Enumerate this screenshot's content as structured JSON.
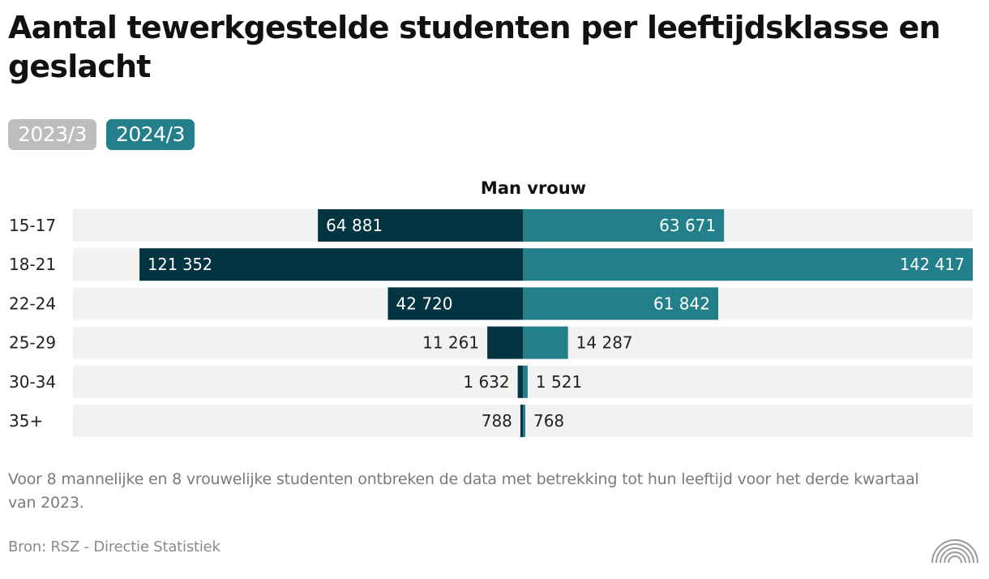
{
  "title": "Aantal tewerkgestelde studenten per leeftijdsklasse en geslacht",
  "tabs": [
    {
      "label": "2023/3",
      "active": false
    },
    {
      "label": "2024/3",
      "active": true
    }
  ],
  "chart_data": {
    "type": "bar",
    "orientation": "horizontal-diverging",
    "title": "Man vrouw",
    "categories": [
      "15-17",
      "18-21",
      "22-24",
      "25-29",
      "30-34",
      "35+"
    ],
    "series": [
      {
        "values": [
          64881,
          121352,
          42720,
          11261,
          1632,
          788
        ],
        "labels": [
          "64 881",
          "121 352",
          "42 720",
          "11 261",
          "1 632",
          "788"
        ]
      },
      {
        "values": [
          63671,
          142417,
          61842,
          14287,
          1521,
          768
        ],
        "labels": [
          "63 671",
          "142 417",
          "61 842",
          "14 287",
          "1 521",
          "768"
        ]
      }
    ],
    "xlim": [
      -142417,
      142417
    ],
    "grid": false,
    "legend": "none"
  },
  "colors": {
    "man": "#033442",
    "vrouw": "#237f8a",
    "track": "#f2f2f2",
    "tab_active": "#237f8a",
    "tab_inactive": "#bdbdbd"
  },
  "footnote": "Voor 8 mannelijke en 8 vrouwelijke studenten ontbreken de data met betrekking tot hun leeftijd voor het derde kwartaal van 2023.",
  "source": "Bron: RSZ - Directie Statistiek",
  "logo_icon": "rainbow-arcs-icon"
}
